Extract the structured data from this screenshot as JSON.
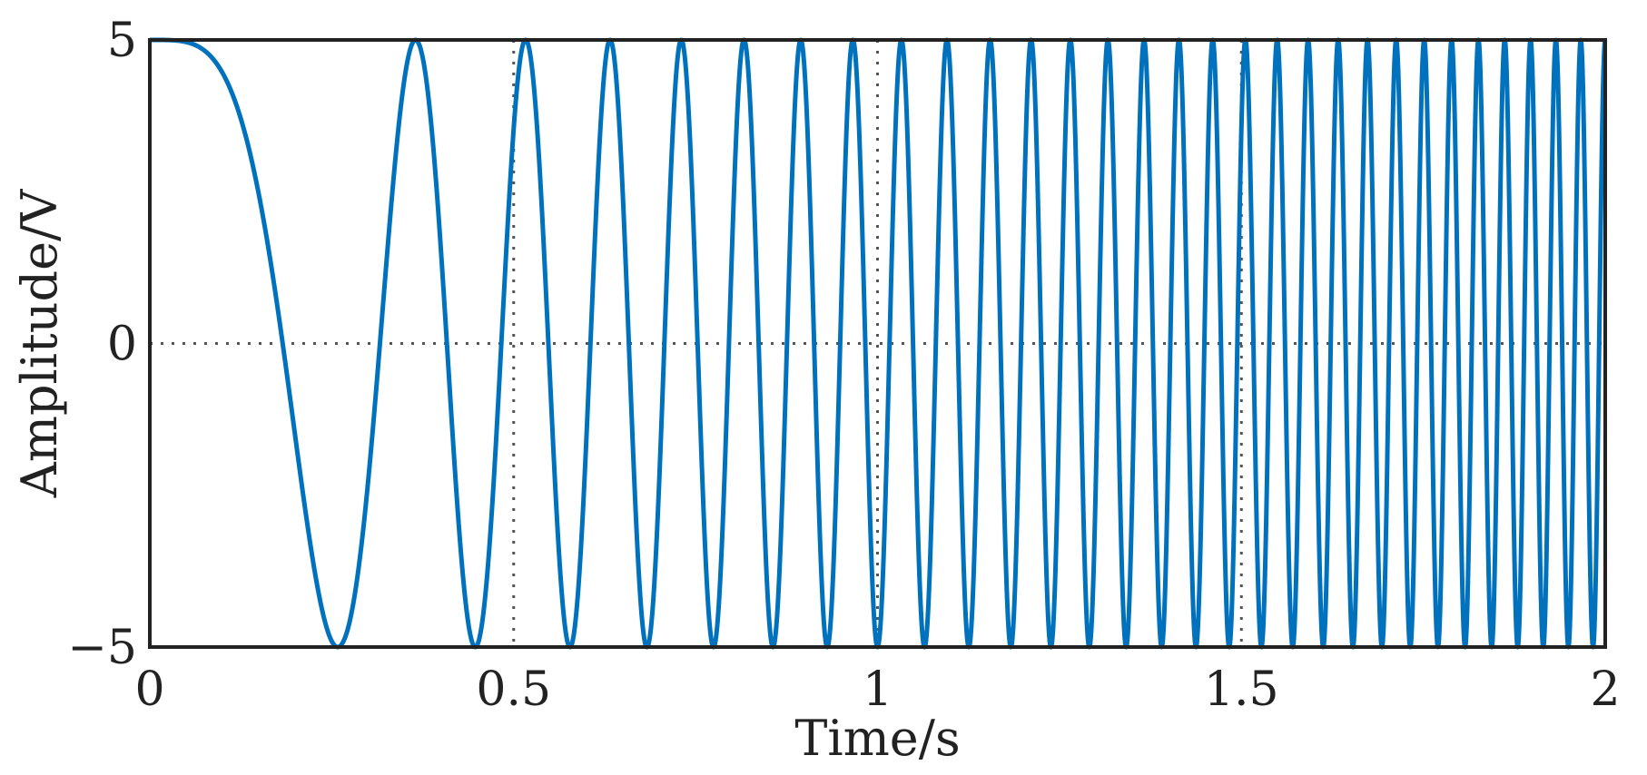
{
  "chart_data": {
    "type": "line",
    "title": "",
    "xlabel": "Time/s",
    "ylabel": "Amplitude/V",
    "xlim": [
      0,
      2
    ],
    "ylim": [
      -5,
      5
    ],
    "x_ticks": [
      {
        "value": 0,
        "label": "0"
      },
      {
        "value": 0.5,
        "label": "0.5"
      },
      {
        "value": 1,
        "label": "1"
      },
      {
        "value": 1.5,
        "label": "1.5"
      },
      {
        "value": 2,
        "label": "2"
      }
    ],
    "y_ticks": [
      {
        "value": 5,
        "label": "5"
      },
      {
        "value": 0,
        "label": "0"
      },
      {
        "value": -5,
        "label": "−5"
      }
    ],
    "grid": true,
    "legend": "none",
    "series": [
      {
        "color": "#0072BD",
        "signal": {
          "kind": "linear chirp",
          "amplitude": 5,
          "start_frequency_hz": 0,
          "end_frequency_hz": 30,
          "duration_s": 2
        },
        "extrema": [
          {
            "x": 0,
            "y": 5
          },
          {
            "x": 0.34,
            "y": -5
          },
          {
            "x": 0.54,
            "y": 5
          },
          {
            "x": 0.69,
            "y": -5
          },
          {
            "x": 0.79,
            "y": 5
          },
          {
            "x": 0.89,
            "y": -5
          },
          {
            "x": 0.97,
            "y": 5
          },
          {
            "x": 1.03,
            "y": -5
          }
        ]
      }
    ]
  }
}
